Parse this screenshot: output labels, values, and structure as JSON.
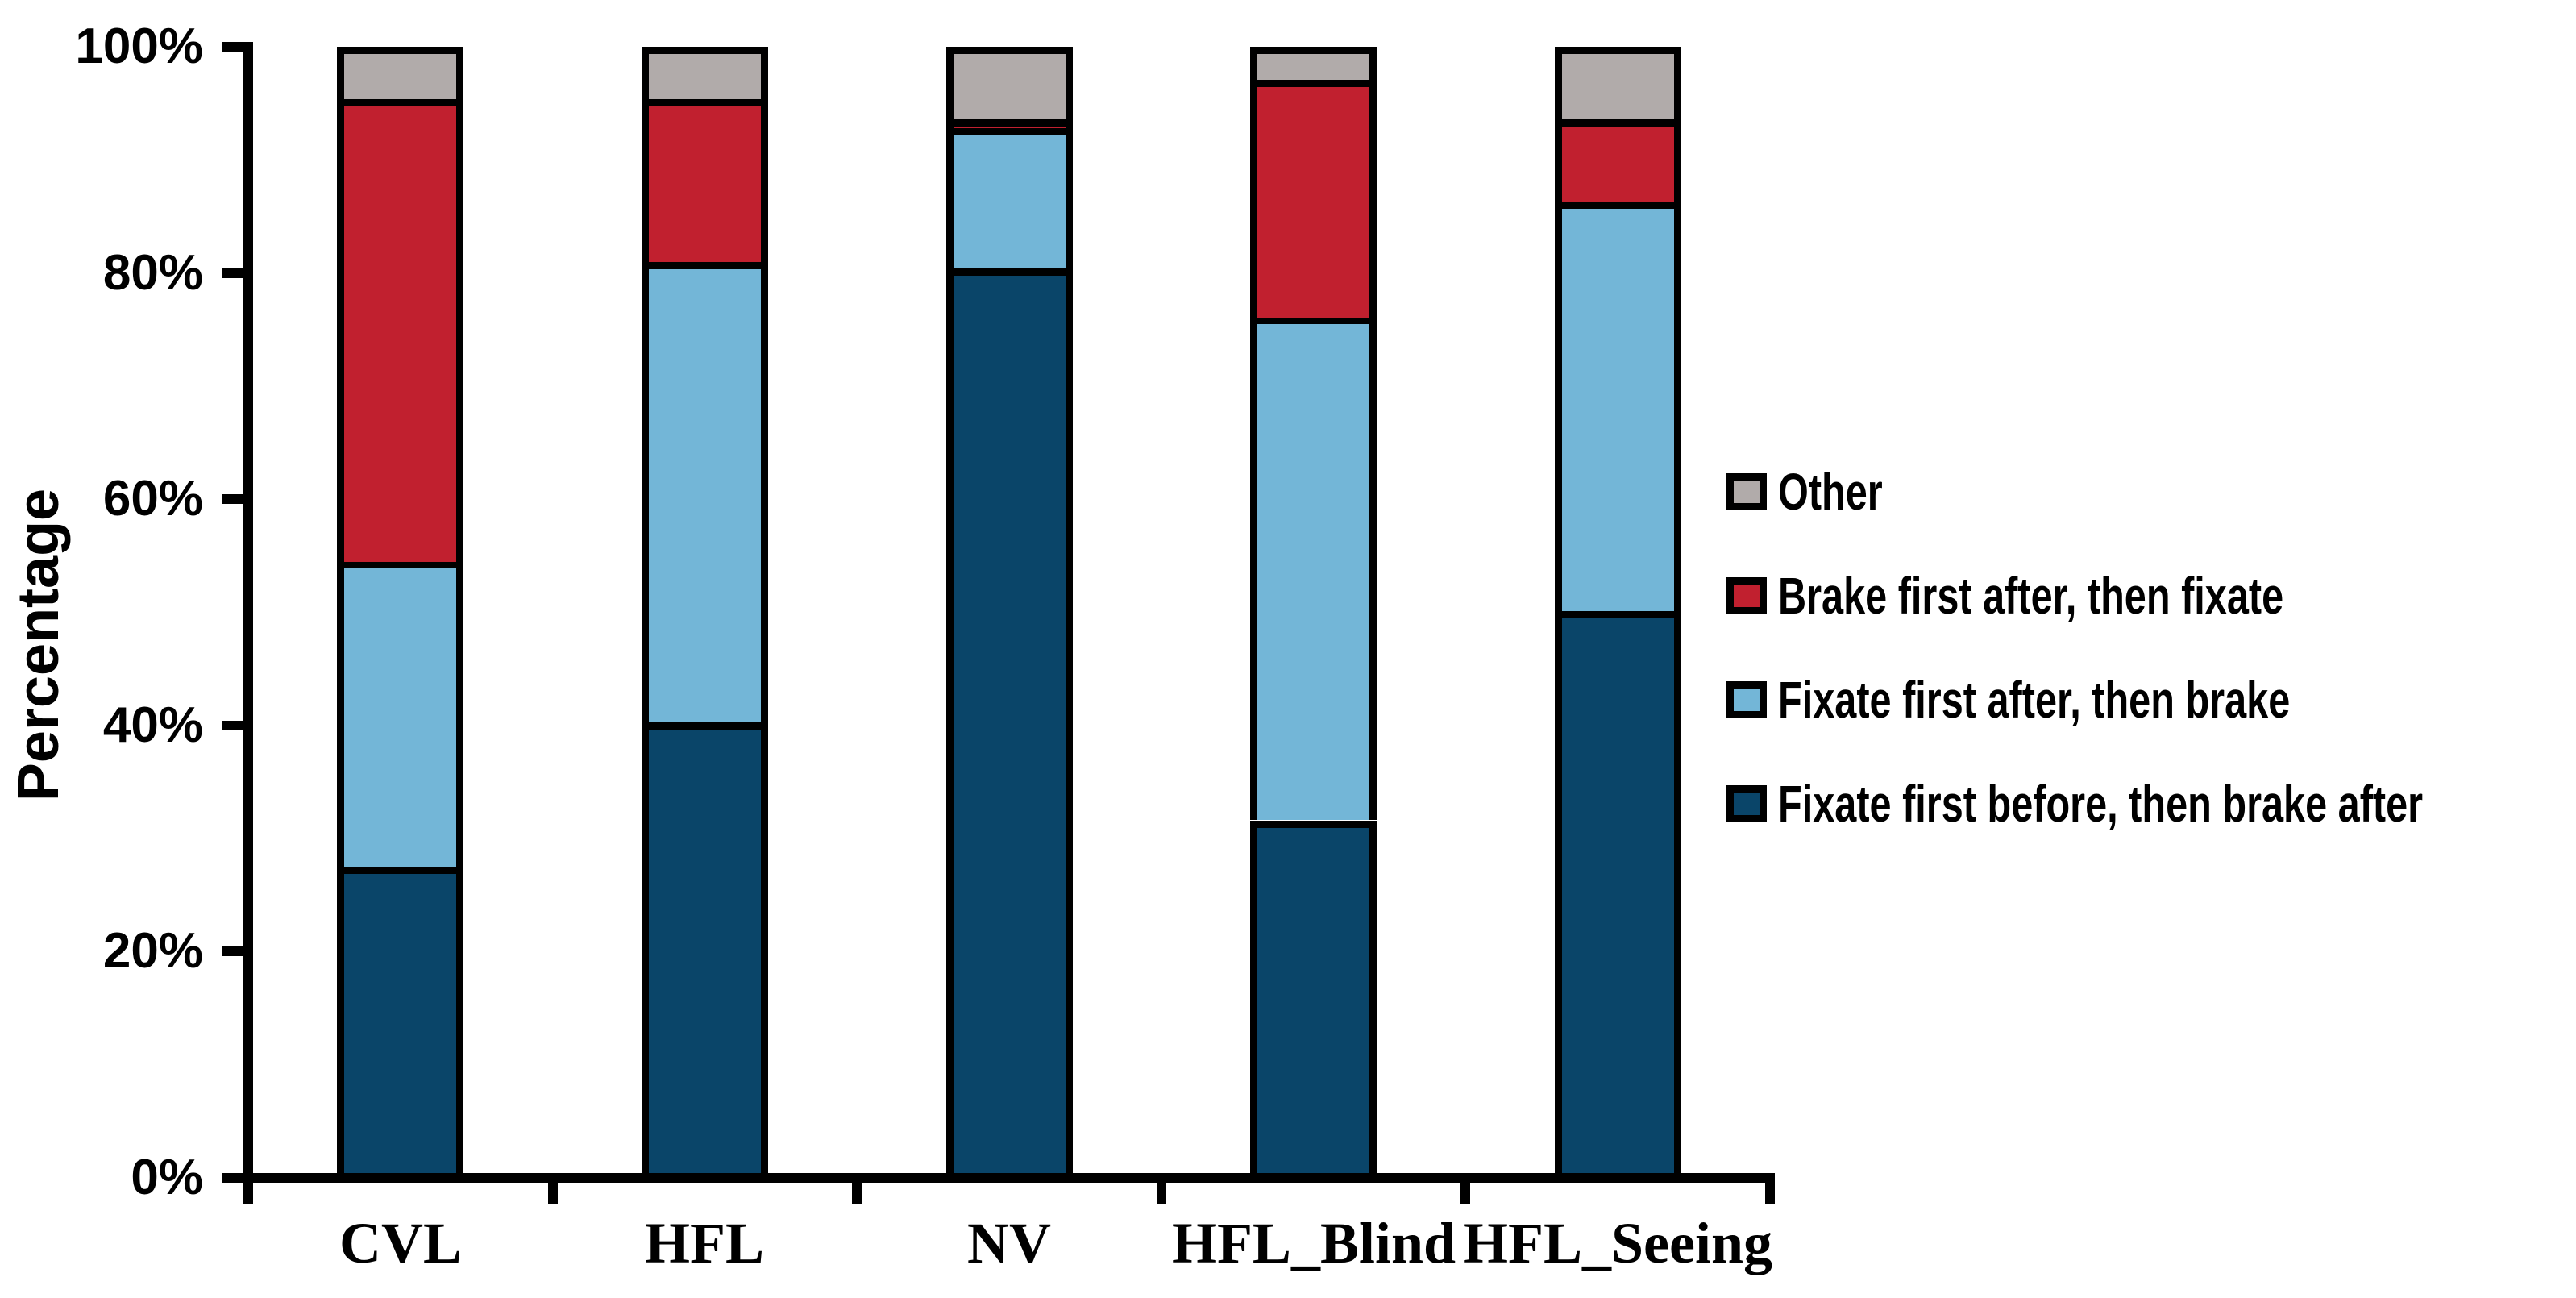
{
  "chart_data": {
    "type": "bar",
    "stacked": true,
    "ylabel": "Percentage",
    "xlabel": "",
    "categories": [
      "CVL",
      "HFL",
      "NV",
      "HFL_Blind",
      "HFL_Seeing"
    ],
    "series": [
      {
        "name": "Fixate first before, then brake after",
        "color": "#0a4569",
        "values": [
          27.5,
          40.3,
          80.4,
          31.6,
          50.1
        ]
      },
      {
        "name": "Fixate first after, then brake",
        "color": "#73b6d7",
        "values": [
          27.0,
          40.7,
          12.4,
          44.5,
          36.2
        ]
      },
      {
        "name": "Brake first after, then fixate",
        "color": "#c1202f",
        "values": [
          40.9,
          14.4,
          0.8,
          21.0,
          7.3
        ]
      },
      {
        "name": "Other",
        "color": "#b1abaa",
        "values": [
          4.6,
          4.6,
          6.4,
          2.9,
          6.4
        ]
      }
    ],
    "y_ticks": [
      "0%",
      "20%",
      "40%",
      "60%",
      "80%",
      "100%"
    ],
    "y_tick_values": [
      0,
      20,
      40,
      60,
      80,
      100
    ],
    "ylim": [
      0,
      100
    ],
    "grid": false,
    "legend_position": "right",
    "legend_order_top_to_bottom": [
      "Other",
      "Brake first after, then fixate",
      "Fixate first after, then brake",
      "Fixate first before, then brake after"
    ],
    "bar_border_color": "#000000",
    "axis_color": "#000000",
    "background_color": "#ffffff"
  }
}
